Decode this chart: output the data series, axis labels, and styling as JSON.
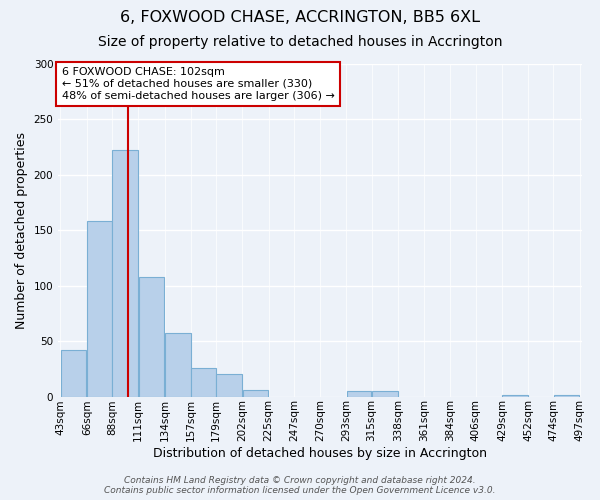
{
  "title": "6, FOXWOOD CHASE, ACCRINGTON, BB5 6XL",
  "subtitle": "Size of property relative to detached houses in Accrington",
  "xlabel": "Distribution of detached houses by size in Accrington",
  "ylabel": "Number of detached properties",
  "bin_labels": [
    "43sqm",
    "66sqm",
    "88sqm",
    "111sqm",
    "134sqm",
    "157sqm",
    "179sqm",
    "202sqm",
    "225sqm",
    "247sqm",
    "270sqm",
    "293sqm",
    "315sqm",
    "338sqm",
    "361sqm",
    "384sqm",
    "406sqm",
    "429sqm",
    "452sqm",
    "474sqm",
    "497sqm"
  ],
  "bin_edges": [
    43,
    66,
    88,
    111,
    134,
    157,
    179,
    202,
    225,
    247,
    270,
    293,
    315,
    338,
    361,
    384,
    406,
    429,
    452,
    474,
    497
  ],
  "bar_heights": [
    42,
    158,
    222,
    108,
    57,
    26,
    20,
    6,
    0,
    0,
    0,
    5,
    5,
    0,
    0,
    0,
    0,
    1,
    0,
    1,
    0
  ],
  "bar_color": "#b8d0ea",
  "bar_edge_color": "#7aafd4",
  "property_size": 102,
  "vline_color": "#cc0000",
  "ylim": [
    0,
    300
  ],
  "yticks": [
    0,
    50,
    100,
    150,
    200,
    250,
    300
  ],
  "annotation_title": "6 FOXWOOD CHASE: 102sqm",
  "annotation_line1": "← 51% of detached houses are smaller (330)",
  "annotation_line2": "48% of semi-detached houses are larger (306) →",
  "annotation_box_color": "#ffffff",
  "annotation_box_edge_color": "#cc0000",
  "footer_line1": "Contains HM Land Registry data © Crown copyright and database right 2024.",
  "footer_line2": "Contains public sector information licensed under the Open Government Licence v3.0.",
  "background_color": "#edf2f9",
  "grid_color": "#ffffff",
  "title_fontsize": 11.5,
  "subtitle_fontsize": 10,
  "axis_label_fontsize": 9,
  "tick_fontsize": 7.5,
  "footer_fontsize": 6.5,
  "annot_fontsize": 8
}
